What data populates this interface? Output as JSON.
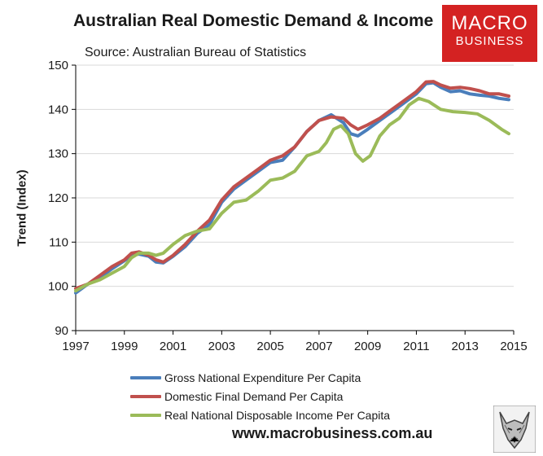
{
  "title": "Australian Real Domestic Demand & Income",
  "source": "Source: Australian Bureau of Statistics",
  "logo": {
    "line1": "MACRO",
    "line2": "BUSINESS"
  },
  "footer_url": "www.macrobusiness.com.au",
  "chart_data": {
    "type": "line",
    "title": "Australian Real Domestic Demand & Income",
    "subtitle": "Source: Australian Bureau of Statistics",
    "xlabel": "",
    "ylabel": "Trend (Index)",
    "xlim": [
      1997,
      2015
    ],
    "ylim": [
      90,
      150
    ],
    "x_ticks": [
      1997,
      1999,
      2001,
      2003,
      2005,
      2007,
      2009,
      2011,
      2013,
      2015
    ],
    "y_ticks": [
      90,
      100,
      110,
      120,
      130,
      140,
      150
    ],
    "grid": "horizontal",
    "legend_position": "bottom",
    "series": [
      {
        "name": "Gross National Expenditure Per Capita",
        "color": "#4a7ebb",
        "points": [
          [
            1997.0,
            98.5
          ],
          [
            1997.5,
            100.5
          ],
          [
            1998.0,
            102.0
          ],
          [
            1998.5,
            104.0
          ],
          [
            1999.0,
            105.8
          ],
          [
            1999.3,
            107.0
          ],
          [
            1999.6,
            107.3
          ],
          [
            2000.0,
            106.8
          ],
          [
            2000.3,
            105.5
          ],
          [
            2000.6,
            105.3
          ],
          [
            2001.0,
            106.8
          ],
          [
            2001.5,
            109.0
          ],
          [
            2002.0,
            112.0
          ],
          [
            2002.5,
            114.0
          ],
          [
            2003.0,
            119.0
          ],
          [
            2003.5,
            122.0
          ],
          [
            2004.0,
            124.0
          ],
          [
            2004.5,
            126.0
          ],
          [
            2005.0,
            128.0
          ],
          [
            2005.5,
            128.5
          ],
          [
            2006.0,
            131.5
          ],
          [
            2006.5,
            135.0
          ],
          [
            2007.0,
            137.5
          ],
          [
            2007.5,
            138.8
          ],
          [
            2008.0,
            137.0
          ],
          [
            2008.3,
            134.5
          ],
          [
            2008.6,
            134.0
          ],
          [
            2009.0,
            135.5
          ],
          [
            2009.5,
            137.5
          ],
          [
            2010.0,
            139.5
          ],
          [
            2010.5,
            141.5
          ],
          [
            2011.0,
            143.5
          ],
          [
            2011.4,
            145.8
          ],
          [
            2011.7,
            146.0
          ],
          [
            2012.0,
            145.0
          ],
          [
            2012.4,
            144.0
          ],
          [
            2012.8,
            144.2
          ],
          [
            2013.2,
            143.5
          ],
          [
            2013.6,
            143.2
          ],
          [
            2014.0,
            143.0
          ],
          [
            2014.4,
            142.5
          ],
          [
            2014.8,
            142.2
          ]
        ]
      },
      {
        "name": "Domestic Final Demand Per Capita",
        "color": "#c0504d",
        "points": [
          [
            1997.0,
            99.5
          ],
          [
            1997.5,
            100.5
          ],
          [
            1998.0,
            102.5
          ],
          [
            1998.5,
            104.5
          ],
          [
            1999.0,
            106.0
          ],
          [
            1999.3,
            107.5
          ],
          [
            1999.6,
            107.8
          ],
          [
            2000.0,
            107.0
          ],
          [
            2000.3,
            106.0
          ],
          [
            2000.6,
            105.5
          ],
          [
            2001.0,
            107.0
          ],
          [
            2001.5,
            109.5
          ],
          [
            2002.0,
            112.5
          ],
          [
            2002.5,
            115.0
          ],
          [
            2003.0,
            119.5
          ],
          [
            2003.5,
            122.5
          ],
          [
            2004.0,
            124.5
          ],
          [
            2004.5,
            126.5
          ],
          [
            2005.0,
            128.5
          ],
          [
            2005.5,
            129.5
          ],
          [
            2006.0,
            131.5
          ],
          [
            2006.5,
            135.0
          ],
          [
            2007.0,
            137.5
          ],
          [
            2007.5,
            138.3
          ],
          [
            2008.0,
            138.0
          ],
          [
            2008.3,
            136.5
          ],
          [
            2008.6,
            135.5
          ],
          [
            2009.0,
            136.5
          ],
          [
            2009.5,
            138.0
          ],
          [
            2010.0,
            140.0
          ],
          [
            2010.5,
            142.0
          ],
          [
            2011.0,
            144.0
          ],
          [
            2011.4,
            146.2
          ],
          [
            2011.7,
            146.3
          ],
          [
            2012.0,
            145.5
          ],
          [
            2012.4,
            144.8
          ],
          [
            2012.8,
            145.0
          ],
          [
            2013.2,
            144.7
          ],
          [
            2013.6,
            144.2
          ],
          [
            2014.0,
            143.5
          ],
          [
            2014.4,
            143.5
          ],
          [
            2014.8,
            143.0
          ]
        ]
      },
      {
        "name": "Real National Disposable Income Per Capita",
        "color": "#9bbb59",
        "points": [
          [
            1997.0,
            99.0
          ],
          [
            1997.5,
            100.5
          ],
          [
            1998.0,
            101.5
          ],
          [
            1998.5,
            103.0
          ],
          [
            1999.0,
            104.5
          ],
          [
            1999.3,
            106.5
          ],
          [
            1999.6,
            107.5
          ],
          [
            2000.0,
            107.5
          ],
          [
            2000.3,
            107.0
          ],
          [
            2000.6,
            107.5
          ],
          [
            2001.0,
            109.5
          ],
          [
            2001.5,
            111.5
          ],
          [
            2002.0,
            112.5
          ],
          [
            2002.5,
            113.0
          ],
          [
            2003.0,
            116.5
          ],
          [
            2003.5,
            119.0
          ],
          [
            2004.0,
            119.5
          ],
          [
            2004.5,
            121.5
          ],
          [
            2005.0,
            124.0
          ],
          [
            2005.5,
            124.5
          ],
          [
            2006.0,
            126.0
          ],
          [
            2006.5,
            129.5
          ],
          [
            2007.0,
            130.5
          ],
          [
            2007.3,
            132.5
          ],
          [
            2007.6,
            135.5
          ],
          [
            2007.9,
            136.3
          ],
          [
            2008.2,
            134.5
          ],
          [
            2008.5,
            130.0
          ],
          [
            2008.8,
            128.3
          ],
          [
            2009.1,
            129.5
          ],
          [
            2009.5,
            134.0
          ],
          [
            2009.9,
            136.5
          ],
          [
            2010.3,
            138.0
          ],
          [
            2010.7,
            141.0
          ],
          [
            2011.1,
            142.5
          ],
          [
            2011.5,
            141.8
          ],
          [
            2012.0,
            140.0
          ],
          [
            2012.5,
            139.5
          ],
          [
            2013.0,
            139.3
          ],
          [
            2013.5,
            139.0
          ],
          [
            2014.0,
            137.5
          ],
          [
            2014.5,
            135.5
          ],
          [
            2014.8,
            134.5
          ]
        ]
      }
    ]
  }
}
